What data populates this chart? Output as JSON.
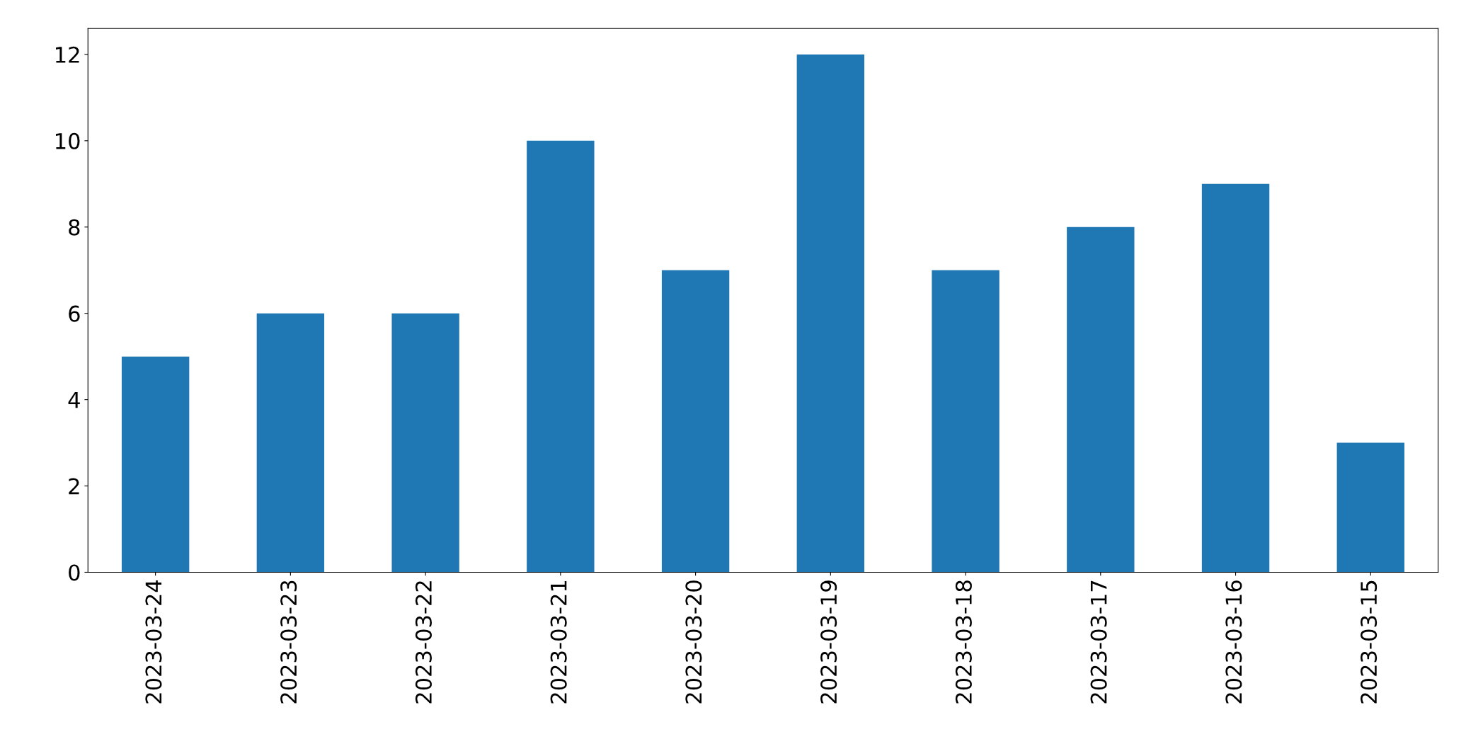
{
  "chart_data": {
    "type": "bar",
    "categories": [
      "2023-03-24",
      "2023-03-23",
      "2023-03-22",
      "2023-03-21",
      "2023-03-20",
      "2023-03-19",
      "2023-03-18",
      "2023-03-17",
      "2023-03-16",
      "2023-03-15"
    ],
    "values": [
      5,
      6,
      6,
      10,
      7,
      12,
      7,
      8,
      9,
      3
    ],
    "color": "#1f77b4",
    "ylim": [
      0,
      12.6
    ],
    "yticks": [
      0,
      2,
      4,
      6,
      8,
      10,
      12
    ],
    "grid": false,
    "legend": false
  }
}
